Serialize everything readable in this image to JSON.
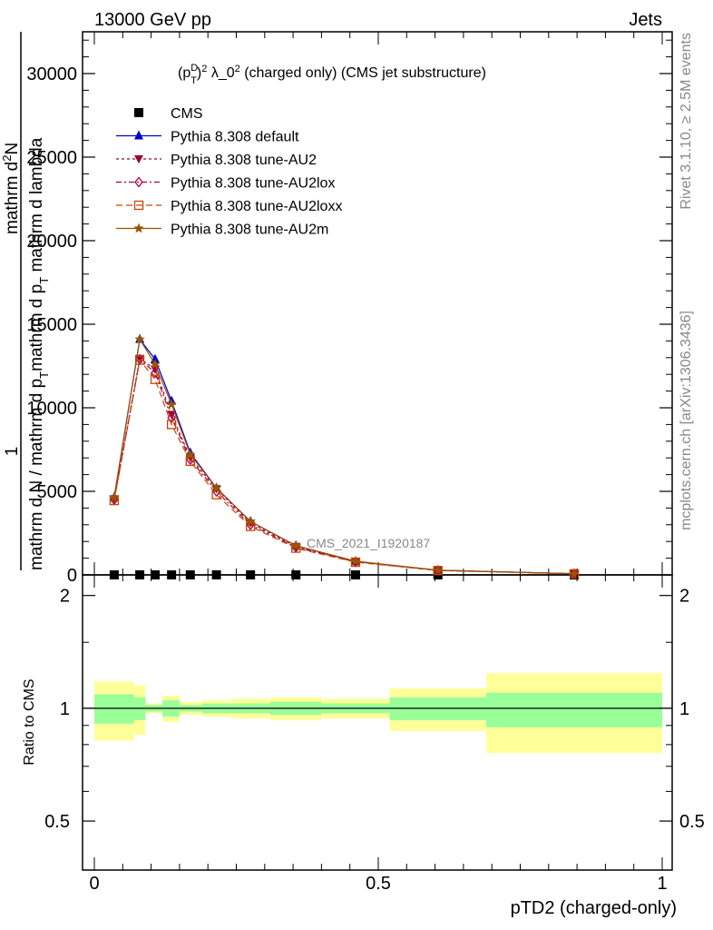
{
  "header": {
    "left": "13000 GeV pp",
    "right": "Jets"
  },
  "side": {
    "rivet": "Rivet 3.1.10, ≥ 2.5M events",
    "mcplots": "mcplots.cern.ch [arXiv:1306.3436]"
  },
  "chart_data": [
    {
      "type": "line",
      "title": "(p_T^D)^2 λ_0^2 (charged only) (CMS jet substructure)",
      "title_parts": [
        "(p",
        "D",
        "T",
        ")",
        "2",
        " λ_0",
        "2",
        " (charged only) (CMS jet substructure)"
      ],
      "ylabel_lines": [
        "1",
        "mathrm d N / mathrm d p",
        "T",
        "mathrm d p",
        "T",
        " mathrm d lambda",
        "mathrm d",
        "2",
        "N"
      ],
      "analysis_tag": "CMS_2021_I1920187",
      "xlim": [
        0,
        1
      ],
      "ylim": [
        0,
        32500
      ],
      "yticks": [
        0,
        5000,
        10000,
        15000,
        20000,
        25000,
        30000
      ],
      "ytick_labels": [
        "0",
        "5000",
        "10000",
        "15000",
        "20000",
        "25000",
        "30000"
      ],
      "x": [
        0.035,
        0.08,
        0.107,
        0.136,
        0.169,
        0.215,
        0.275,
        0.355,
        0.46,
        0.605,
        0.845
      ],
      "series": [
        {
          "name": "CMS",
          "marker": "square",
          "color": "#000000",
          "line": "none",
          "values": [
            0,
            0,
            0,
            0,
            0,
            0,
            0,
            0,
            0,
            0,
            0
          ]
        },
        {
          "name": "Pythia 8.308 default",
          "marker": "triangle-up",
          "color": "#0000cc",
          "line": "solid",
          "values": [
            4650,
            14100,
            12900,
            10400,
            7300,
            5200,
            3200,
            1750,
            800,
            280,
            70
          ]
        },
        {
          "name": "Pythia 8.308 tune-AU2",
          "marker": "triangle-down",
          "color": "#990033",
          "line": "dotted",
          "values": [
            4550,
            12950,
            12300,
            9600,
            7000,
            5150,
            3100,
            1700,
            800,
            270,
            70
          ]
        },
        {
          "name": "Pythia 8.308 tune-AU2lox",
          "marker": "diamond",
          "color": "#aa0044",
          "line": "dashdot",
          "values": [
            4500,
            12900,
            12100,
            9400,
            6900,
            5000,
            3000,
            1650,
            780,
            265,
            68
          ]
        },
        {
          "name": "Pythia 8.308 tune-AU2loxx",
          "marker": "open-square",
          "color": "#cc4400",
          "line": "dashed",
          "values": [
            4450,
            12850,
            11700,
            9000,
            6800,
            4800,
            2900,
            1600,
            760,
            260,
            66
          ]
        },
        {
          "name": "Pythia 8.308 tune-AU2m",
          "marker": "star",
          "color": "#995500",
          "line": "solid",
          "values": [
            4650,
            14100,
            12600,
            10200,
            7200,
            5200,
            3200,
            1750,
            820,
            285,
            72
          ]
        }
      ],
      "legend_placement": "top-left"
    },
    {
      "type": "area",
      "ylabel": "Ratio to CMS",
      "xlabel": "pTD2 (charged-only)",
      "xlim": [
        0,
        1
      ],
      "ylim": [
        0.37,
        2.27
      ],
      "yticks": [
        0.5,
        1,
        2
      ],
      "ytick_labels": [
        "0.5",
        "1",
        "2"
      ],
      "xticks": [
        0,
        0.5,
        1
      ],
      "xtick_labels": [
        "0",
        "0.5",
        "1"
      ],
      "bin_edges": [
        0,
        0.07,
        0.09,
        0.12,
        0.15,
        0.19,
        0.24,
        0.31,
        0.4,
        0.52,
        0.69,
        1.0
      ],
      "band_stat_low": [
        0.91,
        0.93,
        0.98,
        0.95,
        0.98,
        0.97,
        0.97,
        0.96,
        0.97,
        0.93,
        0.89
      ],
      "band_stat_high": [
        1.09,
        1.07,
        1.02,
        1.05,
        1.02,
        1.03,
        1.03,
        1.04,
        1.03,
        1.07,
        1.1
      ],
      "band_total_low": [
        0.82,
        0.85,
        0.97,
        0.92,
        0.96,
        0.95,
        0.94,
        0.93,
        0.94,
        0.87,
        0.76
      ],
      "band_total_high": [
        1.18,
        1.15,
        1.03,
        1.08,
        1.04,
        1.05,
        1.06,
        1.07,
        1.06,
        1.13,
        1.24
      ],
      "colors": {
        "stat": "#99ff99",
        "total": "#ffff99",
        "ref_line": "#000000"
      }
    }
  ]
}
